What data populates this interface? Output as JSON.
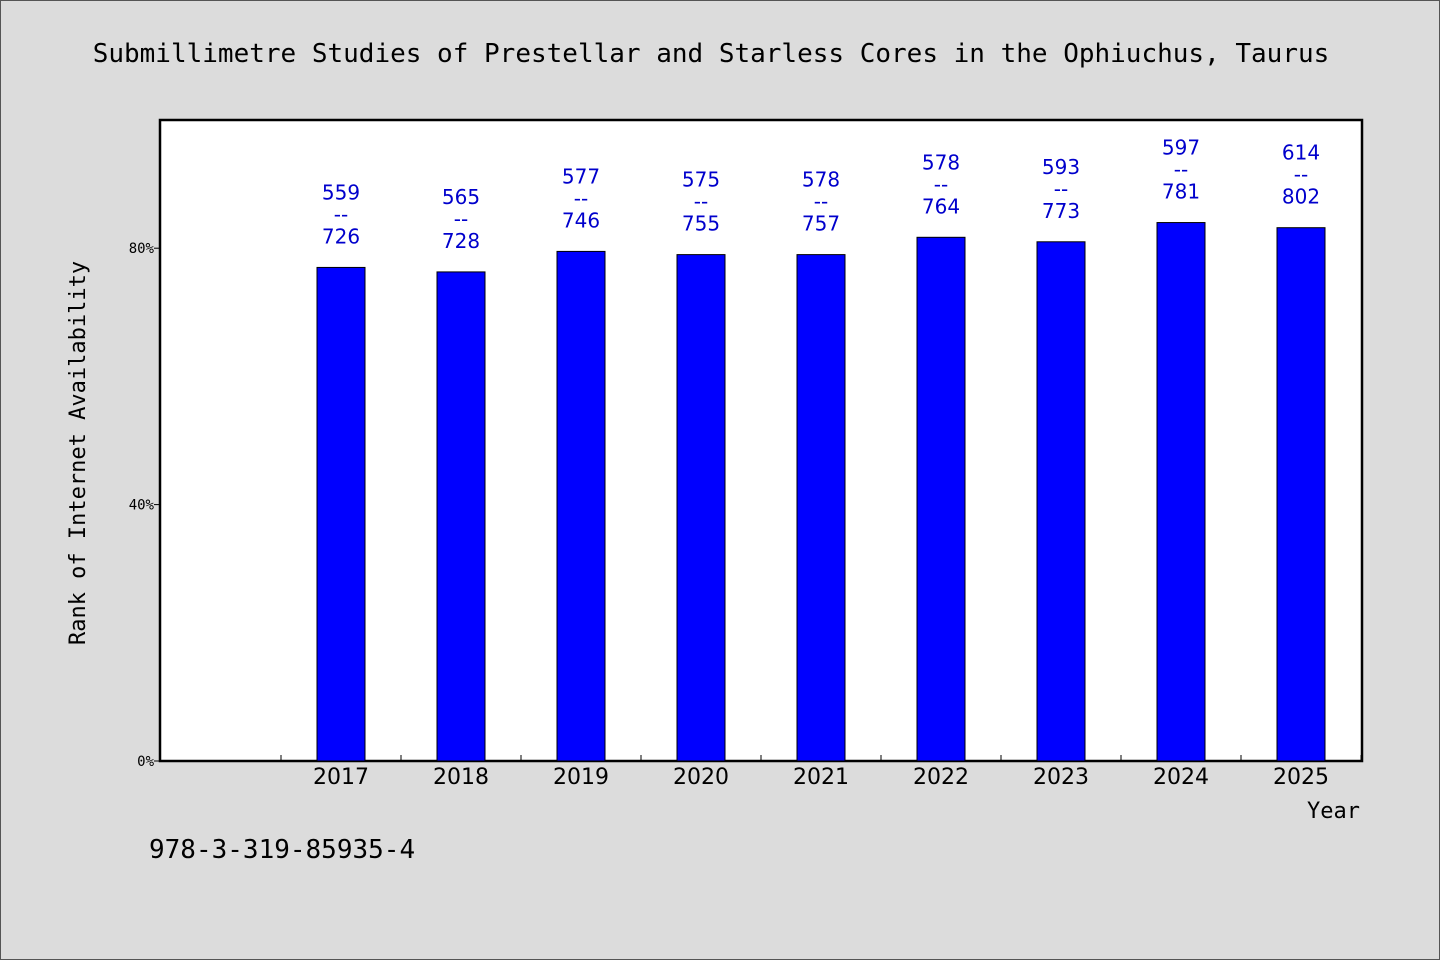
{
  "chart_data": {
    "type": "bar",
    "title": "Submillimetre Studies of Prestellar and Starless Cores in the Ophiuchus, Taurus",
    "xlabel": "Year",
    "ylabel": "Rank of Internet Availability",
    "ylim": [
      0,
      100
    ],
    "yticks": [
      0,
      40,
      80
    ],
    "ytick_labels": [
      "0%",
      "40%",
      "80%"
    ],
    "categories": [
      "2017",
      "2018",
      "2019",
      "2020",
      "2021",
      "2022",
      "2023",
      "2024",
      "2025"
    ],
    "values": [
      77.0,
      76.3,
      79.5,
      79.0,
      79.0,
      81.7,
      81.0,
      84.0,
      83.2
    ],
    "data_labels": [
      [
        "559",
        "--",
        "726"
      ],
      [
        "565",
        "--",
        "728"
      ],
      [
        "577",
        "--",
        "746"
      ],
      [
        "575",
        "--",
        "755"
      ],
      [
        "578",
        "--",
        "757"
      ],
      [
        "578",
        "--",
        "764"
      ],
      [
        "593",
        "--",
        "773"
      ],
      [
        "597",
        "--",
        "781"
      ],
      [
        "614",
        "--",
        "802"
      ]
    ],
    "bar_color": "#0000ff",
    "label_color": "#0000cc",
    "grid": false
  },
  "footer_text": "978-3-319-85935-4"
}
